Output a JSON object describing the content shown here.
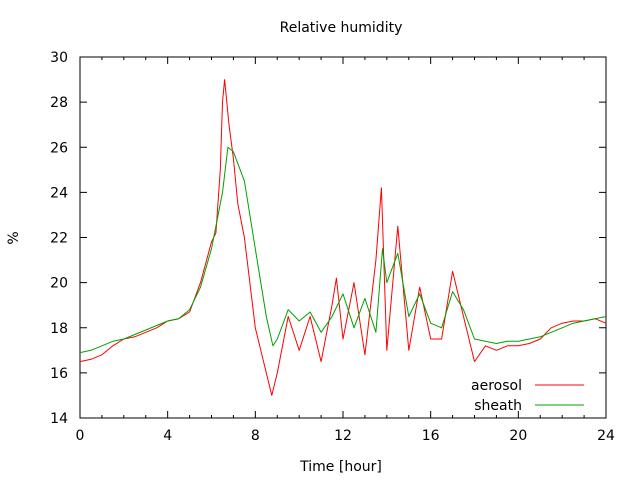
{
  "chart_data": {
    "type": "line",
    "title": "Relative humidity",
    "xlabel": "Time [hour]",
    "ylabel": "%",
    "xlim": [
      0,
      24
    ],
    "ylim": [
      14,
      30
    ],
    "xticks": [
      0,
      4,
      8,
      12,
      16,
      20,
      24
    ],
    "yticks": [
      14,
      16,
      18,
      20,
      22,
      24,
      26,
      28,
      30
    ],
    "grid": false,
    "legend_position": "bottom-right",
    "series": [
      {
        "name": "aerosol",
        "color": "#ff0000",
        "x": [
          0,
          0.5,
          1,
          1.5,
          2,
          2.5,
          3,
          3.5,
          4,
          4.5,
          5,
          5.5,
          6,
          6.2,
          6.4,
          6.5,
          6.6,
          6.8,
          7,
          7.2,
          7.5,
          8,
          8.5,
          8.75,
          9,
          9.5,
          10,
          10.5,
          11,
          11.5,
          11.7,
          12,
          12.5,
          13,
          13.5,
          13.75,
          14,
          14.5,
          15,
          15.5,
          16,
          16.5,
          17,
          17.5,
          18,
          18.5,
          19,
          19.5,
          20,
          20.5,
          21,
          21.5,
          22,
          22.5,
          23,
          23.5,
          24
        ],
        "y": [
          16.5,
          16.6,
          16.8,
          17.2,
          17.5,
          17.6,
          17.8,
          18.0,
          18.3,
          18.4,
          18.7,
          20.0,
          21.8,
          22.2,
          25.0,
          28.0,
          29.0,
          27.0,
          25.5,
          23.5,
          22.0,
          18.0,
          16.0,
          15.0,
          16.0,
          18.5,
          17.0,
          18.5,
          16.5,
          19.0,
          20.2,
          17.5,
          20.0,
          16.8,
          21.0,
          24.2,
          17.0,
          22.5,
          17.0,
          19.8,
          17.5,
          17.5,
          20.5,
          18.5,
          16.5,
          17.2,
          17.0,
          17.2,
          17.2,
          17.3,
          17.5,
          18.0,
          18.2,
          18.3,
          18.3,
          18.4,
          18.2
        ]
      },
      {
        "name": "sheath",
        "color": "#00a000",
        "x": [
          0,
          0.5,
          1,
          1.5,
          2,
          2.5,
          3,
          3.5,
          4,
          4.5,
          5,
          5.5,
          6,
          6.5,
          6.75,
          7,
          7.5,
          8,
          8.5,
          8.8,
          9,
          9.5,
          10,
          10.5,
          11,
          11.5,
          12,
          12.5,
          13,
          13.5,
          13.8,
          14,
          14.5,
          15,
          15.5,
          16,
          16.5,
          17,
          17.5,
          18,
          18.5,
          19,
          19.5,
          20,
          20.5,
          21,
          21.5,
          22,
          22.5,
          23,
          23.5,
          24
        ],
        "y": [
          16.9,
          17.0,
          17.2,
          17.4,
          17.5,
          17.7,
          17.9,
          18.1,
          18.3,
          18.4,
          18.8,
          19.8,
          21.5,
          24.0,
          26.0,
          25.8,
          24.5,
          21.5,
          18.5,
          17.2,
          17.5,
          18.8,
          18.3,
          18.7,
          17.8,
          18.5,
          19.5,
          18.0,
          19.3,
          17.8,
          21.5,
          20.0,
          21.3,
          18.5,
          19.5,
          18.2,
          18.0,
          19.6,
          18.8,
          17.5,
          17.4,
          17.3,
          17.4,
          17.4,
          17.5,
          17.6,
          17.8,
          18.0,
          18.2,
          18.3,
          18.4,
          18.5
        ]
      }
    ]
  }
}
